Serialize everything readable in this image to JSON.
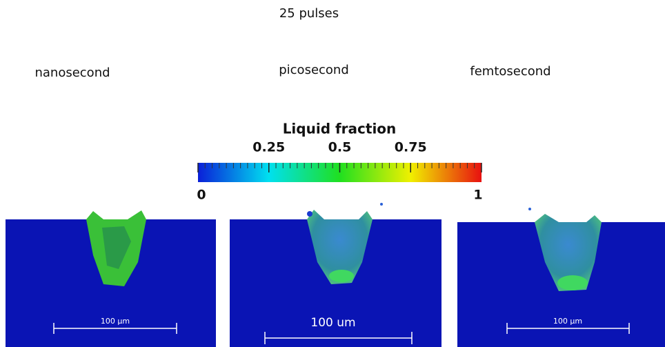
{
  "title": "25 pulses",
  "panels": [
    {
      "label": "nanosecond",
      "scale_bar": "100 µm"
    },
    {
      "label": "picosecond",
      "scale_bar": "100 um"
    },
    {
      "label": "femtosecond",
      "scale_bar": "100 µm"
    }
  ],
  "colorbar": {
    "title": "Liquid fraction",
    "range": [
      0,
      1
    ],
    "ticks": [
      0,
      0.25,
      0.5,
      0.75,
      1
    ]
  }
}
